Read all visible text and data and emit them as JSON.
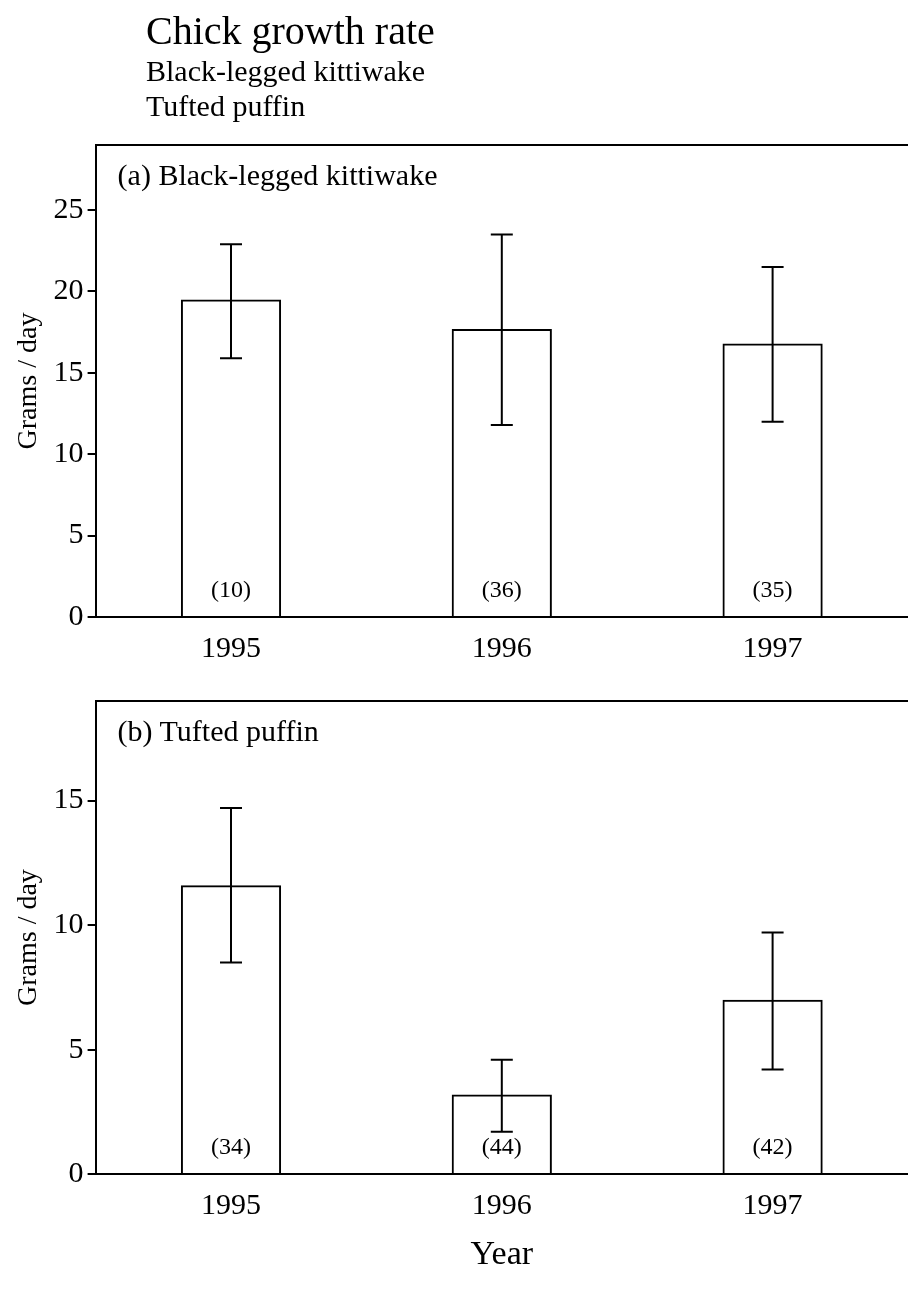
{
  "chart_data": [
    {
      "type": "bar",
      "title": "Chick growth rate",
      "subtitle": "Black-legged kittiwake\nTufted puffin",
      "ylabel": "Grams / day",
      "categories": [
        "1995",
        "1996",
        "1997"
      ],
      "values": [
        19.5,
        17.7,
        16.8
      ],
      "color": "#000000",
      "errors": [
        [
          15.9,
          22.9
        ],
        [
          11.8,
          23.5
        ],
        [
          12.0,
          21.5
        ]
      ],
      "ylim": [
        0,
        29
      ],
      "yticks": [
        0,
        5,
        10,
        15,
        20,
        25
      ],
      "grid": false,
      "annotations": [
        "(a) Black-legged kittiwake",
        "(10)",
        "(36)",
        "(35)"
      ]
    },
    {
      "type": "bar",
      "xlabel": "Year",
      "ylabel": "Grams / day",
      "categories": [
        "1995",
        "1996",
        "1997"
      ],
      "values": [
        11.6,
        3.2,
        7.0
      ],
      "color": "#000000",
      "errors": [
        [
          8.5,
          14.7
        ],
        [
          1.7,
          4.6
        ],
        [
          4.2,
          9.7
        ]
      ],
      "ylim": [
        0,
        19
      ],
      "yticks": [
        0,
        5,
        10,
        15
      ],
      "grid": false,
      "annotations": [
        "(b) Tufted puffin",
        "(34)",
        "(44)",
        "(42)"
      ]
    }
  ]
}
